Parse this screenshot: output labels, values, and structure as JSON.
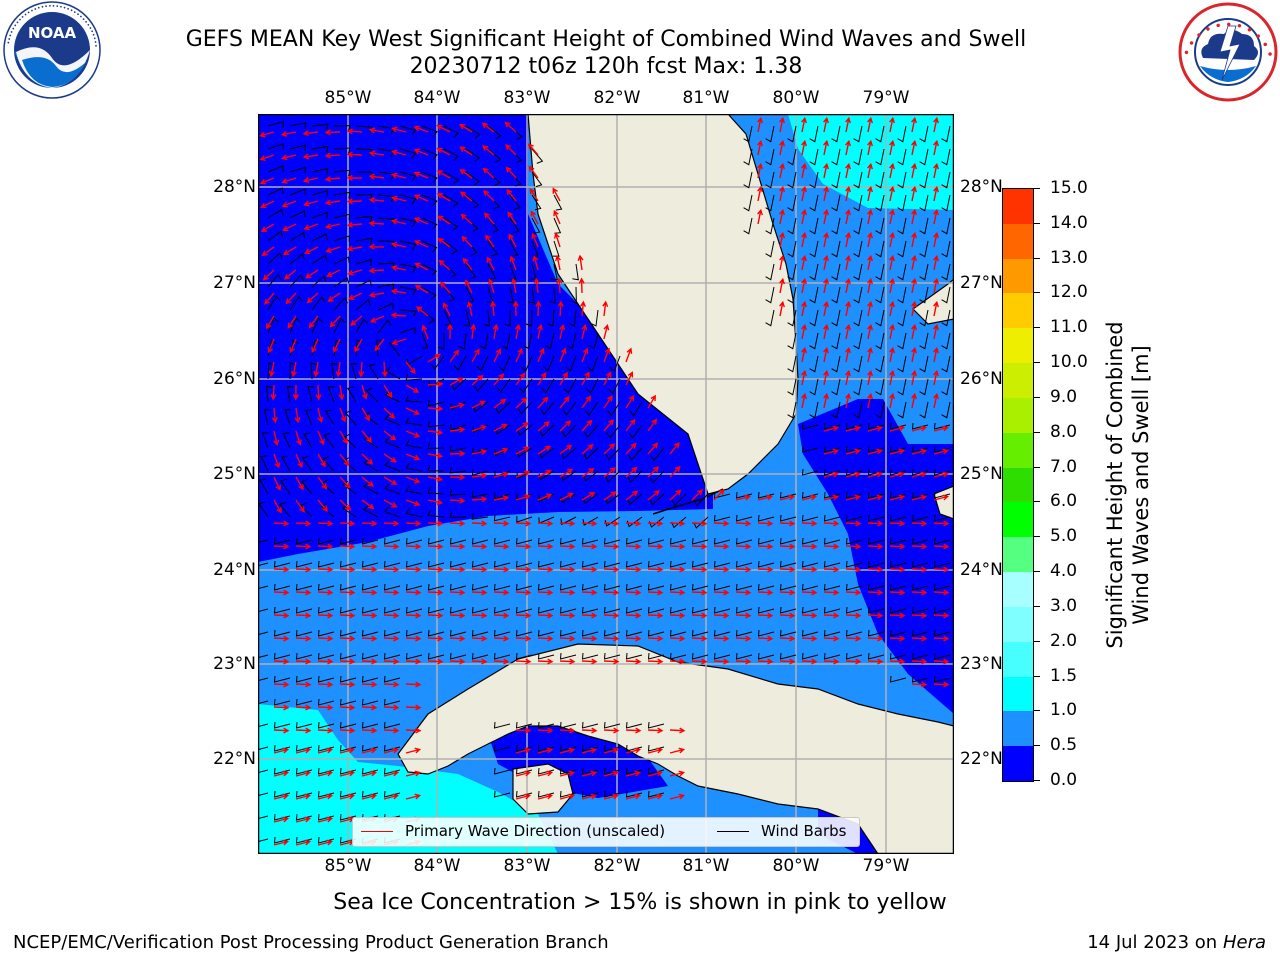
{
  "title": {
    "line1": "GEFS MEAN Key West Significant Height of Combined Wind Waves and Swell",
    "line2": "20230712 t06z 120h fcst   Max: 1.38"
  },
  "logos": {
    "noaa": {
      "icon": "noaa-logo",
      "text": "NOAA"
    },
    "nws": {
      "icon": "national-weather-service-logo"
    }
  },
  "map": {
    "lon_labels": [
      "85°W",
      "84°W",
      "83°W",
      "82°W",
      "81°W",
      "80°W",
      "79°W"
    ],
    "lat_labels": [
      "28°N",
      "27°N",
      "26°N",
      "25°N",
      "24°N",
      "23°N",
      "22°N"
    ],
    "colors": {
      "land": "#eeecdc",
      "coast": "#000000",
      "grid": "#b0b0b0",
      "wave_arrow": "#ff0000",
      "wind_barb": "#000000"
    }
  },
  "legend": {
    "wave_label": "Primary Wave Direction (unscaled)",
    "wind_label": "Wind Barbs"
  },
  "colorbar": {
    "title_line1": "Significant Height of Combined",
    "title_line2": "Wind Waves and Swell [m]",
    "tick_labels": [
      "0.0",
      "0.5",
      "1.0",
      "1.5",
      "2.0",
      "3.0",
      "4.0",
      "5.0",
      "6.0",
      "7.0",
      "8.0",
      "9.0",
      "10.0",
      "11.0",
      "12.0",
      "13.0",
      "14.0",
      "15.0"
    ],
    "colors": [
      "#0000ff",
      "#1e90ff",
      "#00ffff",
      "#48ffff",
      "#7fffff",
      "#a8ffff",
      "#55ff7f",
      "#00ff00",
      "#2ede00",
      "#66ee00",
      "#aaee00",
      "#ccee00",
      "#eeee00",
      "#ffcc00",
      "#ff9900",
      "#ff6600",
      "#ff3300",
      "#ff0000"
    ]
  },
  "bottom_note": "Sea Ice Concentration > 15% is shown in pink to yellow",
  "footer": {
    "left": "NCEP/EMC/Verification Post Processing Product Generation Branch",
    "right_date": "14 Jul 2023 on ",
    "right_host": "Hera"
  }
}
